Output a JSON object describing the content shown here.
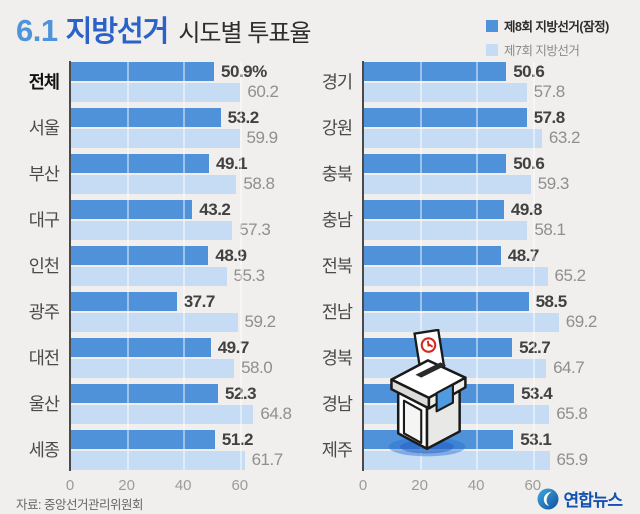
{
  "title": {
    "prefix": "6.1",
    "main": "지방선거",
    "suffix": "시도별 투표율"
  },
  "legend": [
    {
      "label": "제8회 지방선거(잠정)",
      "color": "#4f92d9"
    },
    {
      "label": "제7회 지방선거",
      "color": "#c5dcf4"
    }
  ],
  "chart_data": {
    "type": "bar",
    "orientation": "horizontal",
    "title": "6.1 지방선거 시도별 투표율",
    "xlabel": "",
    "ylabel": "",
    "xlim": [
      0,
      70
    ],
    "ticks": [
      0,
      20,
      40,
      60
    ],
    "grid": true,
    "legend_position": "top-right",
    "series_names": [
      "제8회 지방선거(잠정)",
      "제7회 지방선거"
    ],
    "columns": [
      {
        "rows": [
          {
            "label": "전체",
            "bold": true,
            "n8": 50.9,
            "n7": 60.2,
            "v8": "50.9%",
            "v7": "60.2"
          },
          {
            "label": "서울",
            "bold": false,
            "n8": 53.2,
            "n7": 59.9,
            "v8": "53.2",
            "v7": "59.9"
          },
          {
            "label": "부산",
            "bold": false,
            "n8": 49.1,
            "n7": 58.8,
            "v8": "49.1",
            "v7": "58.8"
          },
          {
            "label": "대구",
            "bold": false,
            "n8": 43.2,
            "n7": 57.3,
            "v8": "43.2",
            "v7": "57.3"
          },
          {
            "label": "인천",
            "bold": false,
            "n8": 48.9,
            "n7": 55.3,
            "v8": "48.9",
            "v7": "55.3"
          },
          {
            "label": "광주",
            "bold": false,
            "n8": 37.7,
            "n7": 59.2,
            "v8": "37.7",
            "v7": "59.2"
          },
          {
            "label": "대전",
            "bold": false,
            "n8": 49.7,
            "n7": 58.0,
            "v8": "49.7",
            "v7": "58.0"
          },
          {
            "label": "울산",
            "bold": false,
            "n8": 52.3,
            "n7": 64.8,
            "v8": "52.3",
            "v7": "64.8"
          },
          {
            "label": "세종",
            "bold": false,
            "n8": 51.2,
            "n7": 61.7,
            "v8": "51.2",
            "v7": "61.7"
          }
        ]
      },
      {
        "rows": [
          {
            "label": "경기",
            "bold": false,
            "n8": 50.6,
            "n7": 57.8,
            "v8": "50.6",
            "v7": "57.8"
          },
          {
            "label": "강원",
            "bold": false,
            "n8": 57.8,
            "n7": 63.2,
            "v8": "57.8",
            "v7": "63.2"
          },
          {
            "label": "충북",
            "bold": false,
            "n8": 50.6,
            "n7": 59.3,
            "v8": "50.6",
            "v7": "59.3"
          },
          {
            "label": "충남",
            "bold": false,
            "n8": 49.8,
            "n7": 58.1,
            "v8": "49.8",
            "v7": "58.1"
          },
          {
            "label": "전북",
            "bold": false,
            "n8": 48.7,
            "n7": 65.2,
            "v8": "48.7",
            "v7": "65.2"
          },
          {
            "label": "전남",
            "bold": false,
            "n8": 58.5,
            "n7": 69.2,
            "v8": "58.5",
            "v7": "69.2"
          },
          {
            "label": "경북",
            "bold": false,
            "n8": 52.7,
            "n7": 64.7,
            "v8": "52.7",
            "v7": "64.7"
          },
          {
            "label": "경남",
            "bold": false,
            "n8": 53.4,
            "n7": 65.8,
            "v8": "53.4",
            "v7": "65.8"
          },
          {
            "label": "제주",
            "bold": false,
            "n8": 53.1,
            "n7": 65.9,
            "v8": "53.1",
            "v7": "65.9"
          }
        ]
      }
    ]
  },
  "source": "자료: 중앙선거관리위원회",
  "logo_text": "연합뉴스",
  "colors": {
    "series8": "#4f92d9",
    "series7": "#c5dcf4",
    "axis": "#4a4a4a",
    "background": "#f0efed",
    "title_accent_light": "#4f93da",
    "title_accent_dark": "#2a62c9",
    "logo_blue": "#1452b0"
  }
}
